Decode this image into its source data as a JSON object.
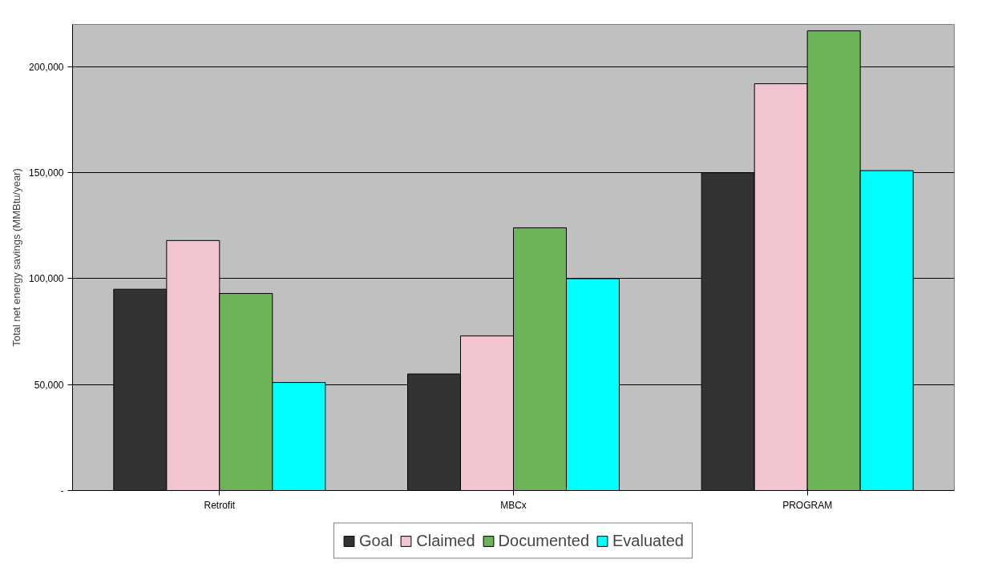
{
  "chart_data": {
    "type": "bar",
    "ylabel": "Total net energy savings (MMBtu/year)",
    "categories": [
      "Retrofit",
      "MBCx",
      "PROGRAM"
    ],
    "series": [
      {
        "name": "Goal",
        "color": "#333333",
        "values": [
          95000,
          55000,
          150000
        ]
      },
      {
        "name": "Claimed",
        "color": "#f2c4d0",
        "values": [
          118000,
          73000,
          192000
        ]
      },
      {
        "name": "Documented",
        "color": "#6db35a",
        "values": [
          93000,
          124000,
          217000
        ]
      },
      {
        "name": "Evaluated",
        "color": "#00ffff",
        "values": [
          51000,
          100000,
          151000
        ]
      }
    ],
    "ylim": [
      0,
      220000
    ],
    "yticks": [
      {
        "value": 0,
        "label": "-"
      },
      {
        "value": 50000,
        "label": "50,000"
      },
      {
        "value": 100000,
        "label": "100,000"
      },
      {
        "value": 150000,
        "label": "150,000"
      },
      {
        "value": 200000,
        "label": "200,000"
      }
    ],
    "grid": "y",
    "legend": "bottom"
  }
}
